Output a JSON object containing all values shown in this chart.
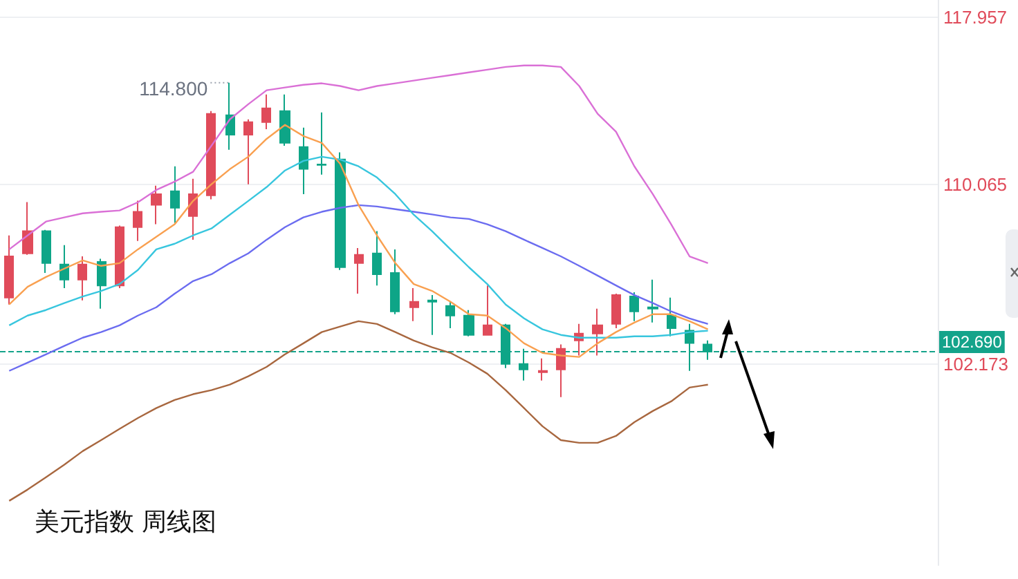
{
  "chart_data": {
    "type": "candlestick",
    "title": "美元指数 周线图",
    "categories": [
      null,
      null,
      null,
      null,
      null,
      null,
      null,
      null,
      null,
      null,
      null,
      null,
      null,
      null,
      null,
      null,
      null,
      null,
      null,
      null,
      null,
      null,
      null,
      null,
      null,
      null,
      null,
      null,
      null,
      null,
      null,
      null,
      null,
      null,
      null,
      null,
      null,
      null,
      null,
      null,
      null,
      null,
      null,
      null,
      null,
      null,
      null,
      null,
      null,
      null,
      null
    ],
    "ohlc": [
      [
        105.02,
        107.76,
        104.72,
        106.83
      ],
      [
        106.96,
        109.26,
        106.9,
        107.95
      ],
      [
        107.95,
        108.01,
        106.1,
        106.53
      ],
      [
        106.47,
        107.33,
        105.43,
        105.8
      ],
      [
        105.8,
        106.83,
        104.9,
        106.47
      ],
      [
        106.59,
        106.72,
        104.54,
        105.55
      ],
      [
        105.55,
        108.2,
        105.43,
        108.13
      ],
      [
        108.13,
        109.32,
        107.51,
        108.82
      ],
      [
        109.13,
        110.0,
        108.26,
        109.62
      ],
      [
        109.75,
        110.89,
        108.32,
        109.0
      ],
      [
        108.63,
        110.32,
        107.57,
        109.62
      ],
      [
        109.56,
        113.46,
        109.38,
        113.33
      ],
      [
        113.26,
        114.8,
        111.65,
        112.35
      ],
      [
        112.35,
        113.07,
        110.07,
        112.94
      ],
      [
        112.94,
        114.24,
        112.61,
        113.59
      ],
      [
        113.46,
        114.24,
        111.84,
        111.97
      ],
      [
        111.78,
        112.68,
        109.62,
        110.77
      ],
      [
        110.98,
        113.39,
        110.51,
        110.95
      ],
      [
        111.21,
        111.53,
        106.23,
        106.35
      ],
      [
        106.53,
        107.2,
        105.19,
        106.9
      ],
      [
        106.96,
        107.95,
        105.55,
        106.04
      ],
      [
        106.1,
        107.14,
        104.3,
        104.42
      ],
      [
        104.6,
        105.43,
        104.0,
        104.84
      ],
      [
        104.9,
        105.13,
        103.41,
        104.84
      ],
      [
        104.66,
        104.84,
        103.7,
        104.24
      ],
      [
        104.24,
        104.48,
        103.35,
        103.41
      ],
      [
        103.41,
        105.55,
        103.41,
        103.82
      ],
      [
        103.82,
        103.88,
        102.0,
        102.17
      ],
      [
        102.17,
        102.82,
        101.47,
        101.94
      ],
      [
        101.82,
        102.41,
        101.47,
        101.88
      ],
      [
        101.94,
        103.0,
        100.78,
        102.82
      ],
      [
        103.17,
        103.88,
        102.53,
        103.47
      ],
      [
        103.47,
        104.54,
        102.53,
        103.82
      ],
      [
        103.88,
        105.19,
        103.7,
        105.13
      ],
      [
        105.07,
        105.25,
        104.0,
        104.42
      ],
      [
        104.6,
        105.8,
        103.94,
        104.54
      ],
      [
        104.24,
        105.02,
        103.35,
        103.7
      ],
      [
        103.59,
        103.88,
        101.88,
        103.06
      ],
      [
        103.0,
        103.17,
        102.35,
        102.69
      ],
      null,
      null,
      null,
      null,
      null,
      null,
      null,
      null,
      null,
      null,
      null,
      null
    ],
    "colors": [
      "#e04b5a",
      "#e04b5a",
      "#0ea587",
      "#0ea587",
      "#e04b5a",
      "#0ea587",
      "#e04b5a",
      "#e04b5a",
      "#e04b5a",
      "#0ea587",
      "#e04b5a",
      "#e04b5a",
      "#0ea587",
      "#e04b5a",
      "#e04b5a",
      "#0ea587",
      "#0ea587",
      "#0ea587",
      "#0ea587",
      "#e04b5a",
      "#0ea587",
      "#0ea587",
      "#e04b5a",
      "#0ea587",
      "#0ea587",
      "#0ea587",
      "#e04b5a",
      "#0ea587",
      "#0ea587",
      "#e04b5a",
      "#e04b5a",
      "#e04b5a",
      "#e04b5a",
      "#e04b5a",
      "#0ea587",
      "#0ea587",
      "#0ea587",
      "#0ea587",
      "#0ea587",
      null,
      null,
      null,
      null,
      null,
      null,
      null,
      null,
      null,
      null,
      null,
      null
    ],
    "series": [
      {
        "type": "line",
        "color": "#da70d6",
        "values": [
          107.14,
          107.76,
          108.38,
          108.57,
          108.75,
          108.82,
          108.88,
          109.25,
          109.81,
          110.19,
          110.64,
          111.84,
          113.07,
          113.78,
          114.44,
          114.57,
          114.7,
          114.77,
          114.64,
          114.44,
          114.64,
          114.77,
          114.9,
          115.03,
          115.16,
          115.29,
          115.42,
          115.55,
          115.62,
          115.62,
          115.55,
          114.64,
          113.33,
          112.49,
          110.89,
          109.62,
          108.26,
          106.83,
          106.53,
          null,
          null,
          null,
          null,
          null,
          null,
          null,
          null,
          null,
          null,
          null,
          null
        ]
      },
      {
        "type": "line",
        "color": "#6b6cf0",
        "values": [
          101.88,
          102.23,
          102.58,
          102.94,
          103.29,
          103.53,
          103.82,
          104.24,
          104.6,
          105.19,
          105.74,
          106.04,
          106.53,
          106.96,
          107.57,
          108.13,
          108.57,
          108.82,
          109.0,
          109.12,
          109.06,
          108.94,
          108.82,
          108.7,
          108.57,
          108.5,
          108.26,
          107.95,
          107.57,
          107.2,
          106.83,
          106.41,
          105.98,
          105.55,
          105.13,
          104.78,
          104.42,
          104.12,
          103.88,
          null,
          null,
          null,
          null,
          null,
          null,
          null,
          null,
          null,
          null,
          null,
          null
        ]
      },
      {
        "type": "line",
        "color": "#38c6de",
        "values": [
          103.82,
          104.24,
          104.48,
          104.78,
          105.07,
          105.31,
          105.61,
          106.23,
          107.14,
          107.39,
          107.76,
          108.07,
          108.69,
          109.31,
          109.94,
          110.7,
          111.14,
          111.33,
          111.2,
          110.89,
          110.38,
          109.62,
          108.69,
          107.95,
          107.14,
          106.35,
          105.61,
          104.72,
          104.12,
          103.65,
          103.41,
          103.29,
          103.29,
          103.29,
          103.35,
          103.35,
          103.41,
          103.53,
          103.59,
          null,
          null,
          null,
          null,
          null,
          null,
          null,
          null,
          null,
          null,
          null,
          null
        ]
      },
      {
        "type": "line",
        "color": "#f9a050",
        "values": [
          104.72,
          105.49,
          105.92,
          106.29,
          106.65,
          106.41,
          106.53,
          107.14,
          107.7,
          108.26,
          109.31,
          110.07,
          110.76,
          111.33,
          112.16,
          112.81,
          112.29,
          111.97,
          111.01,
          109.12,
          107.76,
          106.53,
          105.61,
          105.31,
          104.84,
          104.3,
          104.24,
          103.7,
          103.05,
          102.64,
          102.53,
          102.47,
          103.05,
          103.53,
          103.94,
          104.3,
          104.3,
          104.0,
          103.65,
          null,
          null,
          null,
          null,
          null,
          null,
          null,
          null,
          null,
          null,
          null,
          null
        ]
      },
      {
        "type": "line",
        "color": "#a8673f",
        "values": [
          96.54,
          96.99,
          97.49,
          98.0,
          98.55,
          99.0,
          99.46,
          99.91,
          100.32,
          100.66,
          100.9,
          101.07,
          101.3,
          101.65,
          102.05,
          102.58,
          103.05,
          103.53,
          103.77,
          104.0,
          103.88,
          103.53,
          103.17,
          102.88,
          102.64,
          102.23,
          101.76,
          101.07,
          100.32,
          99.57,
          99.0,
          98.89,
          98.89,
          99.17,
          99.74,
          100.2,
          100.6,
          101.18,
          101.3,
          null,
          null,
          null,
          null,
          null,
          null,
          null,
          null,
          null,
          null,
          null,
          null
        ]
      }
    ],
    "ylim": [
      94,
      118.8
    ],
    "yticks": [
      102.173,
      110.065,
      117.957
    ],
    "log": "y",
    "ref_lines": [
      {
        "axis": "y",
        "value": 102.69,
        "label": "102.690",
        "color": "#14a38a",
        "line_style": "dashed"
      }
    ],
    "annotations": [
      "114.800"
    ],
    "grid": "y",
    "tick_labels": "y",
    "marker": "none",
    "line_style": "solid"
  }
}
